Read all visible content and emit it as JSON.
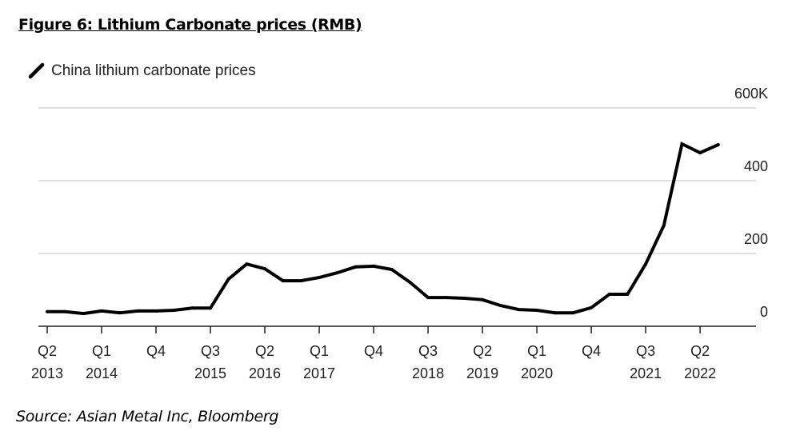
{
  "chart_data": {
    "type": "line",
    "title": "Figure 6: Lithium Carbonate prices (RMB)",
    "source": "Source: Asian Metal Inc, Bloomberg",
    "legend": {
      "placement": "top-left",
      "entries": [
        "China lithium carbonate prices"
      ]
    },
    "grid": true,
    "ylim": [
      0,
      600
    ],
    "y_unit": "K",
    "y_ticks": [
      {
        "value": 600,
        "label": "600K"
      },
      {
        "value": 400,
        "label": "400"
      },
      {
        "value": 200,
        "label": "200"
      },
      {
        "value": 0,
        "label": "0"
      }
    ],
    "x_ticks": [
      {
        "q": "Q2",
        "y": "2013"
      },
      {
        "q": "Q1",
        "y": "2014"
      },
      {
        "q": "Q4",
        "y": ""
      },
      {
        "q": "Q3",
        "y": "2015"
      },
      {
        "q": "Q2",
        "y": "2016"
      },
      {
        "q": "Q1",
        "y": "2017"
      },
      {
        "q": "Q4",
        "y": ""
      },
      {
        "q": "Q3",
        "y": "2018"
      },
      {
        "q": "Q2",
        "y": "2019"
      },
      {
        "q": "Q1",
        "y": "2020"
      },
      {
        "q": "Q4",
        "y": ""
      },
      {
        "q": "Q3",
        "y": "2021"
      },
      {
        "q": "Q2",
        "y": "2022"
      }
    ],
    "series": [
      {
        "name": "China lithium carbonate prices",
        "color": "#000000",
        "x": [
          "2013Q2",
          "2013Q3",
          "2013Q4",
          "2014Q1",
          "2014Q2",
          "2014Q3",
          "2014Q4",
          "2015Q1",
          "2015Q2",
          "2015Q3",
          "2015Q4",
          "2016Q1",
          "2016Q2",
          "2016Q3",
          "2016Q4",
          "2017Q1",
          "2017Q2",
          "2017Q3",
          "2017Q4",
          "2018Q1",
          "2018Q2",
          "2018Q3",
          "2018Q4",
          "2019Q1",
          "2019Q2",
          "2019Q3",
          "2019Q4",
          "2020Q1",
          "2020Q2",
          "2020Q3",
          "2020Q4",
          "2021Q1",
          "2021Q2",
          "2021Q3",
          "2021Q4",
          "2022Q1",
          "2022Q2",
          "2022Q3"
        ],
        "values": [
          40,
          40,
          35,
          42,
          37,
          42,
          42,
          44,
          50,
          50,
          130,
          171,
          158,
          125,
          125,
          134,
          147,
          163,
          165,
          156,
          121,
          79,
          79,
          77,
          73,
          57,
          46,
          44,
          37,
          37,
          51,
          88,
          88,
          171,
          277,
          501,
          477,
          499
        ]
      }
    ]
  }
}
